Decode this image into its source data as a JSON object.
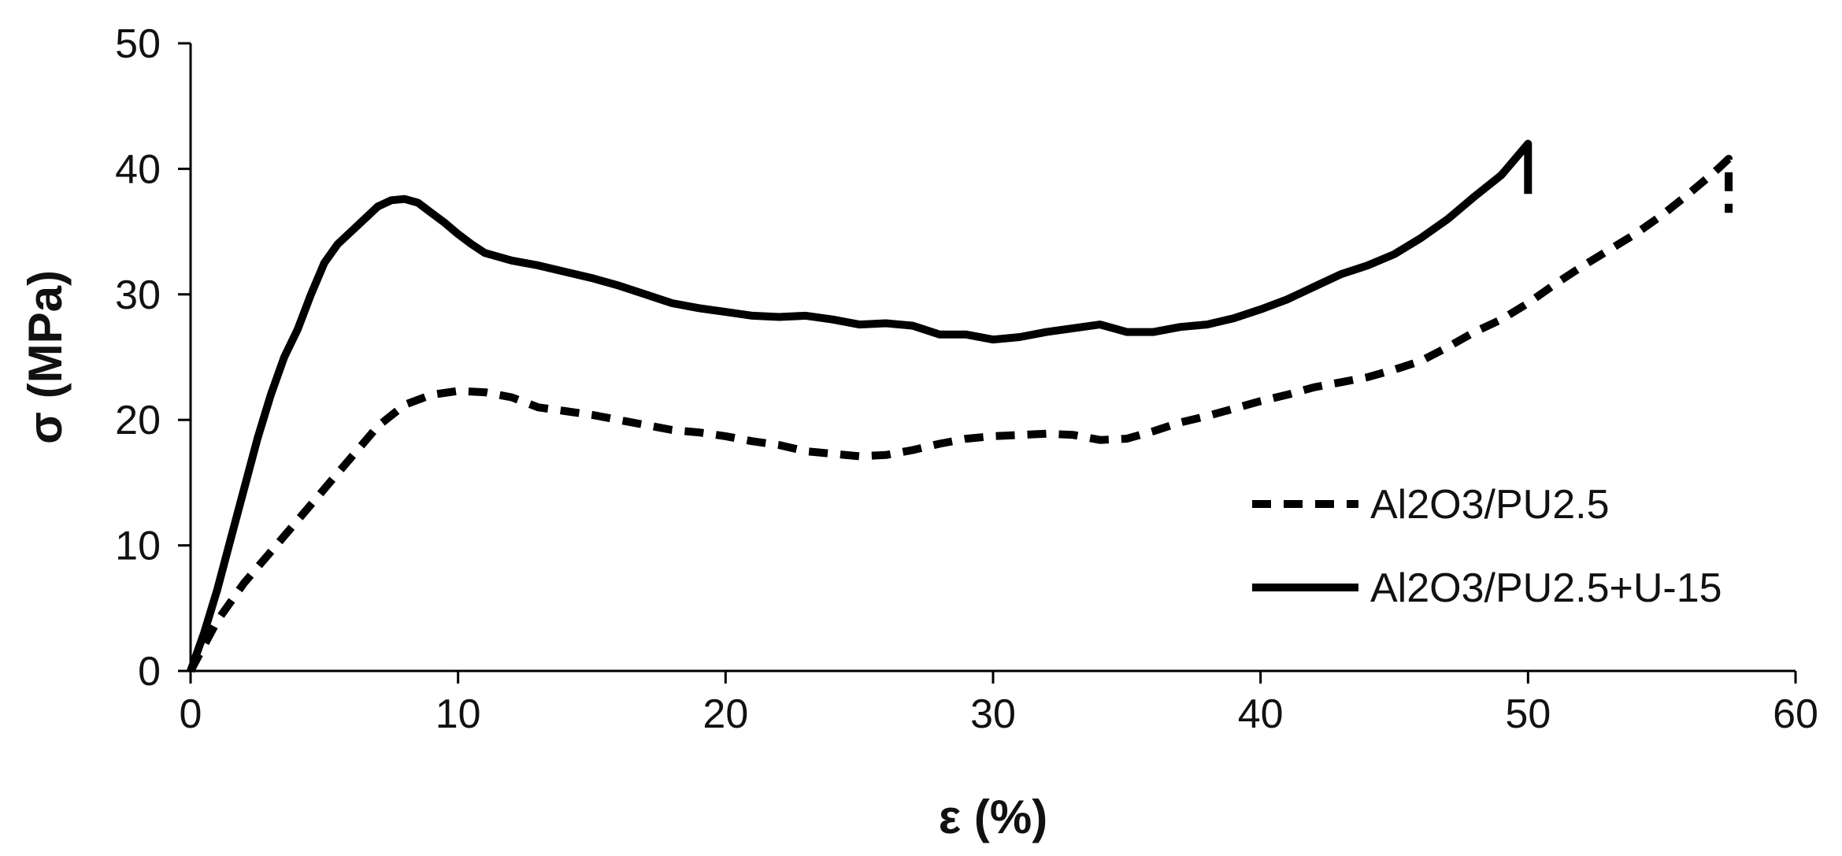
{
  "chart_data": {
    "type": "line",
    "title": "",
    "xlabel": "ε (%)",
    "ylabel": "σ (MPa)",
    "xlim": [
      0,
      60
    ],
    "ylim": [
      0,
      50
    ],
    "xticks": [
      0,
      10,
      20,
      30,
      40,
      50,
      60
    ],
    "yticks": [
      0,
      10,
      20,
      30,
      40,
      50
    ],
    "grid": false,
    "legend_position": "right",
    "series": [
      {
        "name": "Al2O3/PU2.5",
        "line_style": "dashed",
        "color": "#000000",
        "x": [
          0,
          0.5,
          1,
          2,
          3,
          4,
          5,
          6,
          7,
          8,
          9,
          10,
          11,
          12,
          13,
          14,
          15,
          16,
          17,
          18,
          19,
          20,
          21,
          22,
          23,
          24,
          25,
          26,
          27,
          28,
          29,
          30,
          31,
          32,
          33,
          34,
          35,
          36,
          37,
          38,
          39,
          40,
          41,
          42,
          43,
          44,
          45,
          46,
          47,
          48,
          49,
          50,
          51,
          52,
          53,
          54,
          55,
          56,
          57,
          57.5,
          57.5
        ],
        "y": [
          0,
          2,
          4,
          7,
          9.5,
          12,
          14.5,
          17,
          19.5,
          21.2,
          22,
          22.3,
          22.2,
          21.8,
          21,
          20.7,
          20.4,
          20,
          19.6,
          19.2,
          19,
          18.7,
          18.3,
          18,
          17.5,
          17.3,
          17.1,
          17.2,
          17.6,
          18.1,
          18.5,
          18.7,
          18.8,
          18.9,
          18.8,
          18.4,
          18.5,
          19.1,
          19.8,
          20.3,
          20.9,
          21.5,
          22,
          22.6,
          23,
          23.4,
          24,
          24.7,
          25.8,
          27,
          28,
          29.3,
          30.8,
          32.2,
          33.5,
          34.8,
          36.3,
          38,
          39.8,
          40.8,
          36.5
        ]
      },
      {
        "name": "Al2O3/PU2.5+U-15",
        "line_style": "solid",
        "color": "#000000",
        "x": [
          0,
          0.5,
          1,
          1.5,
          2,
          2.5,
          3,
          3.5,
          4,
          4.5,
          5,
          5.5,
          6,
          6.5,
          7,
          7.5,
          8,
          8.5,
          9,
          9.5,
          10,
          10.5,
          11,
          12,
          13,
          14,
          15,
          16,
          17,
          18,
          19,
          20,
          21,
          22,
          23,
          24,
          25,
          26,
          27,
          28,
          29,
          30,
          31,
          32,
          33,
          34,
          35,
          36,
          37,
          38,
          39,
          40,
          41,
          42,
          43,
          44,
          45,
          46,
          47,
          48,
          49,
          50,
          50,
          50
        ],
        "y": [
          0,
          3,
          6.5,
          10.5,
          14.5,
          18.5,
          22,
          25,
          27.2,
          30,
          32.5,
          34,
          35,
          36,
          37,
          37.5,
          37.6,
          37.3,
          36.5,
          35.7,
          34.8,
          34,
          33.3,
          32.7,
          32.3,
          31.8,
          31.3,
          30.7,
          30,
          29.3,
          28.9,
          28.6,
          28.3,
          28.2,
          28.3,
          28,
          27.6,
          27.7,
          27.5,
          26.8,
          26.8,
          26.4,
          26.6,
          27,
          27.3,
          27.6,
          27,
          27,
          27.4,
          27.6,
          28.1,
          28.8,
          29.6,
          30.6,
          31.6,
          32.3,
          33.2,
          34.5,
          36,
          37.8,
          39.5,
          42,
          40,
          38
        ]
      }
    ]
  }
}
